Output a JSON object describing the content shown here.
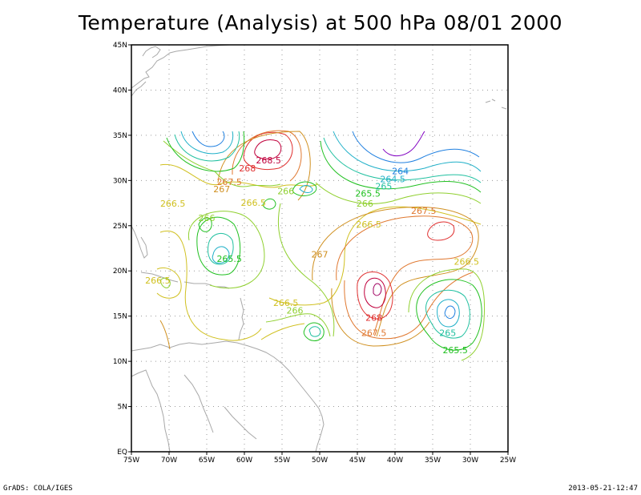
{
  "title": "Temperature (Analysis) at 500 hPa 08/01 2000",
  "footer": {
    "left": "GrADS: COLA/IGES",
    "right": "2013-05-21-12:47"
  },
  "map": {
    "lon_range": [
      -75,
      -25
    ],
    "lat_range": [
      0,
      45
    ],
    "grid": true,
    "lon_ticks": [
      {
        "value": -75,
        "label": "75W"
      },
      {
        "value": -70,
        "label": "70W"
      },
      {
        "value": -65,
        "label": "65W"
      },
      {
        "value": -60,
        "label": "60W"
      },
      {
        "value": -55,
        "label": "55W"
      },
      {
        "value": -50,
        "label": "50W"
      },
      {
        "value": -45,
        "label": "45W"
      },
      {
        "value": -40,
        "label": "40W"
      },
      {
        "value": -35,
        "label": "35W"
      },
      {
        "value": -30,
        "label": "30W"
      },
      {
        "value": -25,
        "label": "25W"
      }
    ],
    "lat_ticks": [
      {
        "value": 0,
        "label": "EQ"
      },
      {
        "value": 5,
        "label": "5N"
      },
      {
        "value": 10,
        "label": "10N"
      },
      {
        "value": 15,
        "label": "15N"
      },
      {
        "value": 20,
        "label": "20N"
      },
      {
        "value": 25,
        "label": "25N"
      },
      {
        "value": 30,
        "label": "30N"
      },
      {
        "value": 35,
        "label": "35N"
      },
      {
        "value": 40,
        "label": "40N"
      },
      {
        "value": 45,
        "label": "45N"
      }
    ],
    "contour_labels": [
      {
        "text": "268.5",
        "lon": -56.8,
        "lat": 31.9,
        "color": "#c0003c"
      },
      {
        "text": "268",
        "lon": -59.6,
        "lat": 31.0,
        "color": "#e03030"
      },
      {
        "text": "267.5",
        "lon": -62.0,
        "lat": 29.5,
        "color": "#e07830"
      },
      {
        "text": "267",
        "lon": -63.0,
        "lat": 28.7,
        "color": "#d09020"
      },
      {
        "text": "266.5",
        "lon": -69.5,
        "lat": 27.1,
        "color": "#d0c020"
      },
      {
        "text": "266.5",
        "lon": -58.8,
        "lat": 27.2,
        "color": "#d0c020"
      },
      {
        "text": "266",
        "lon": -54.5,
        "lat": 28.5,
        "color": "#90d030"
      },
      {
        "text": "266",
        "lon": -65.0,
        "lat": 25.5,
        "color": "#90d030"
      },
      {
        "text": "265.5",
        "lon": -62.0,
        "lat": 21.0,
        "color": "#20c020"
      },
      {
        "text": "266.5",
        "lon": -71.5,
        "lat": 18.6,
        "color": "#d0c020"
      },
      {
        "text": "266.5",
        "lon": -43.5,
        "lat": 24.8,
        "color": "#d0c020"
      },
      {
        "text": "266",
        "lon": -44.0,
        "lat": 27.1,
        "color": "#90d030"
      },
      {
        "text": "265.5",
        "lon": -43.6,
        "lat": 28.2,
        "color": "#20c020"
      },
      {
        "text": "265",
        "lon": -41.5,
        "lat": 29.0,
        "color": "#20c0a0"
      },
      {
        "text": "264.5",
        "lon": -40.3,
        "lat": 29.8,
        "color": "#20b0c8"
      },
      {
        "text": "264",
        "lon": -39.3,
        "lat": 30.7,
        "color": "#2080e0"
      },
      {
        "text": "267.5",
        "lon": -36.2,
        "lat": 26.3,
        "color": "#e07830"
      },
      {
        "text": "267",
        "lon": -50.0,
        "lat": 21.5,
        "color": "#d09020"
      },
      {
        "text": "266.5",
        "lon": -30.5,
        "lat": 20.7,
        "color": "#d0c020"
      },
      {
        "text": "266.5",
        "lon": -54.5,
        "lat": 16.1,
        "color": "#d0c020"
      },
      {
        "text": "266",
        "lon": -53.3,
        "lat": 15.3,
        "color": "#90d030"
      },
      {
        "text": "268",
        "lon": -42.8,
        "lat": 14.5,
        "color": "#e03030"
      },
      {
        "text": "267.5",
        "lon": -42.8,
        "lat": 12.8,
        "color": "#e07830"
      },
      {
        "text": "265",
        "lon": -33.0,
        "lat": 12.8,
        "color": "#20c0a0"
      },
      {
        "text": "265.5",
        "lon": -32.0,
        "lat": 10.9,
        "color": "#20c020"
      }
    ]
  }
}
